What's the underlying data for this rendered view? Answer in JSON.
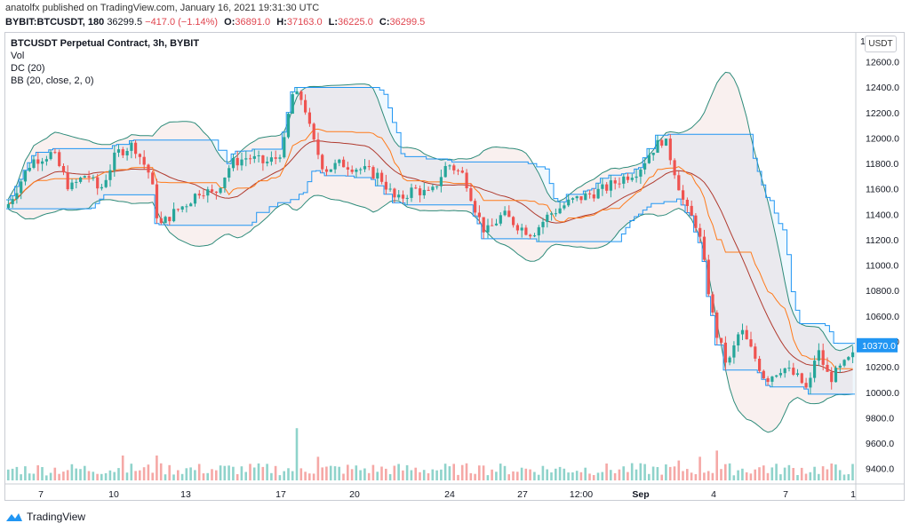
{
  "header": {
    "published": "anatolfx published on TradingView.com, January 16, 2021 19:31:30 UTC",
    "symbol": "BYBIT:BTCUSDT, 180",
    "last": "36299.5",
    "change": "−417.0 (−1.14%)",
    "o_label": "O:",
    "o_val": "36891.0",
    "h_label": "H:",
    "h_val": "37163.0",
    "l_label": "L:",
    "l_val": "36225.0",
    "c_label": "C:",
    "c_val": "36299.5"
  },
  "legend": {
    "title": "BTCUSDT Perpetual Contract, 3h, BYBIT",
    "vol": "Vol",
    "dc": "DC (20)",
    "bb": "BB (20, close, 2, 0)"
  },
  "currency_button": "USDT",
  "price_badge": "10370.0",
  "footer": {
    "brand": "TradingView"
  },
  "colors": {
    "up": "#26a69a",
    "down": "#ef5350",
    "vol_up": "#8fd3cb",
    "vol_down": "#f5a8a6",
    "bb_band": "#2e8b7a",
    "bb_basis": "#b03a2e",
    "dc_band": "#2196f3",
    "dc_basis": "#ff7a1a",
    "badge": "#2196f3"
  },
  "chart_data": {
    "type": "candlestick",
    "y_ticks": [
      "12600.0",
      "12400.0",
      "12200.0",
      "12000.0",
      "11800.0",
      "11600.0",
      "11400.0",
      "11200.0",
      "11000.0",
      "10800.0",
      "10600.0",
      "10400.0",
      "10200.0",
      "10000.0",
      "9800.0",
      "9600.0",
      "9400.0"
    ],
    "y_top_partial": "1",
    "x_ticks": [
      "7",
      "10",
      "13",
      "17",
      "20",
      "24",
      "27",
      "12:00",
      "Sep",
      "4",
      "7",
      "1"
    ],
    "ylim": [
      9300,
      12750
    ],
    "price_path": [
      {
        "t": 0,
        "p": 11450
      },
      {
        "t": 6,
        "p": 11820
      },
      {
        "t": 11,
        "p": 11880
      },
      {
        "t": 15,
        "p": 11600
      },
      {
        "t": 19,
        "p": 11720
      },
      {
        "t": 22,
        "p": 11580
      },
      {
        "t": 26,
        "p": 11880
      },
      {
        "t": 30,
        "p": 11950
      },
      {
        "t": 34,
        "p": 11700
      },
      {
        "t": 36,
        "p": 11300
      },
      {
        "t": 39,
        "p": 11400
      },
      {
        "t": 43,
        "p": 11500
      },
      {
        "t": 46,
        "p": 11600
      },
      {
        "t": 49,
        "p": 11550
      },
      {
        "t": 53,
        "p": 11800
      },
      {
        "t": 57,
        "p": 11850
      },
      {
        "t": 61,
        "p": 11800
      },
      {
        "t": 64,
        "p": 11850
      },
      {
        "t": 66,
        "p": 12000
      },
      {
        "t": 67,
        "p": 12350
      },
      {
        "t": 70,
        "p": 12300
      },
      {
        "t": 72,
        "p": 12000
      },
      {
        "t": 75,
        "p": 11750
      },
      {
        "t": 79,
        "p": 11800
      },
      {
        "t": 84,
        "p": 11750
      },
      {
        "t": 88,
        "p": 11700
      },
      {
        "t": 92,
        "p": 11500
      },
      {
        "t": 96,
        "p": 11600
      },
      {
        "t": 100,
        "p": 11550
      },
      {
        "t": 104,
        "p": 11800
      },
      {
        "t": 108,
        "p": 11700
      },
      {
        "t": 111,
        "p": 11400
      },
      {
        "t": 113,
        "p": 11250
      },
      {
        "t": 117,
        "p": 11400
      },
      {
        "t": 121,
        "p": 11300
      },
      {
        "t": 124,
        "p": 11250
      },
      {
        "t": 128,
        "p": 11400
      },
      {
        "t": 133,
        "p": 11500
      },
      {
        "t": 137,
        "p": 11550
      },
      {
        "t": 141,
        "p": 11600
      },
      {
        "t": 145,
        "p": 11680
      },
      {
        "t": 149,
        "p": 11750
      },
      {
        "t": 152,
        "p": 11900
      },
      {
        "t": 155,
        "p": 12000
      },
      {
        "t": 157,
        "p": 11800
      },
      {
        "t": 160,
        "p": 11450
      },
      {
        "t": 163,
        "p": 11300
      },
      {
        "t": 165,
        "p": 10900
      },
      {
        "t": 167,
        "p": 10500
      },
      {
        "t": 170,
        "p": 10200
      },
      {
        "t": 173,
        "p": 10500
      },
      {
        "t": 176,
        "p": 10300
      },
      {
        "t": 179,
        "p": 10100
      },
      {
        "t": 183,
        "p": 10200
      },
      {
        "t": 187,
        "p": 10100
      },
      {
        "t": 189,
        "p": 10000
      },
      {
        "t": 191,
        "p": 10350
      },
      {
        "t": 194,
        "p": 10100
      },
      {
        "t": 197,
        "p": 10200
      },
      {
        "t": 200,
        "p": 10300
      }
    ],
    "volume_spikes": [
      {
        "t": 27,
        "v": 1.0
      },
      {
        "t": 35,
        "v": 1.0
      },
      {
        "t": 68,
        "v": 2.1
      },
      {
        "t": 73,
        "v": 0.95
      },
      {
        "t": 111,
        "v": 0.6
      },
      {
        "t": 158,
        "v": 0.8
      },
      {
        "t": 163,
        "v": 0.95
      },
      {
        "t": 167,
        "v": 1.2
      },
      {
        "t": 178,
        "v": 0.6
      }
    ],
    "candle_count": 200
  }
}
